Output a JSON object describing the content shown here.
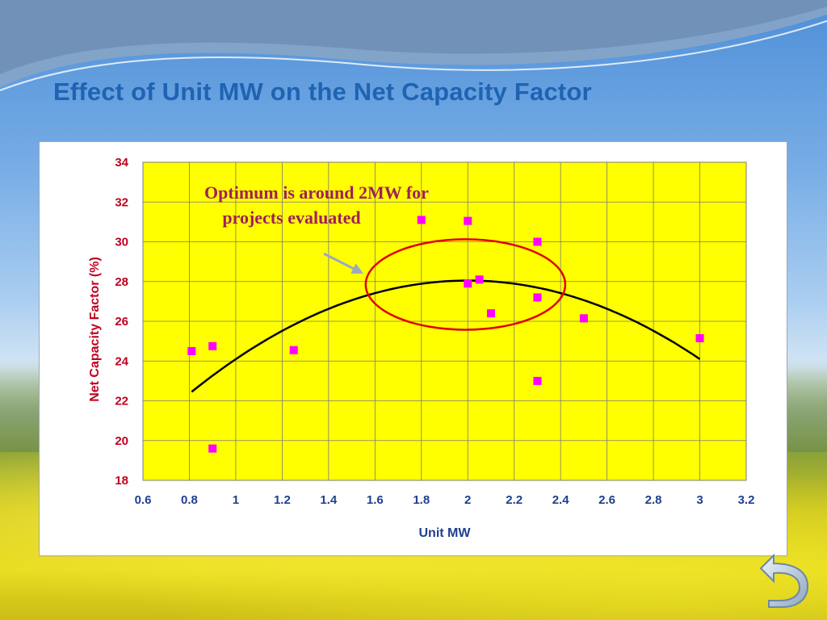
{
  "slide": {
    "title": "Effect of Unit MW on the Net Capacity Factor",
    "nav": {
      "back_icon": "return-arrow-icon"
    }
  },
  "colors": {
    "title": "#1f63b3",
    "plot_background": "#ffff00",
    "axis_label": "#c0001e",
    "x_axis_label": "#1f3f8f",
    "point": "#ff00ff",
    "trend": "#000000",
    "circle": "#e00000",
    "annotation_text": "#a0205a",
    "arrow": "#9aaabb"
  },
  "chart_data": {
    "type": "scatter",
    "title": "",
    "xlabel": "Unit MW",
    "ylabel": "Net Capacity Factor (%)",
    "xlim": [
      0.6,
      3.2
    ],
    "ylim": [
      18,
      34
    ],
    "x_ticks": [
      "0.6",
      "0.8",
      "1",
      "1.2",
      "1.4",
      "1.6",
      "1.8",
      "2",
      "2.2",
      "2.4",
      "2.6",
      "2.8",
      "3",
      "3.2"
    ],
    "y_ticks": [
      "18",
      "20",
      "22",
      "24",
      "26",
      "28",
      "30",
      "32",
      "34"
    ],
    "grid": true,
    "series": [
      {
        "points": [
          [
            0.81,
            24.5
          ],
          [
            0.9,
            24.75
          ],
          [
            0.9,
            19.6
          ],
          [
            1.25,
            24.55
          ],
          [
            1.8,
            31.1
          ],
          [
            2.0,
            31.05
          ],
          [
            2.0,
            27.9
          ],
          [
            2.05,
            28.1
          ],
          [
            2.1,
            26.4
          ],
          [
            2.3,
            30.0
          ],
          [
            2.3,
            27.2
          ],
          [
            2.3,
            23.0
          ],
          [
            2.5,
            26.15
          ],
          [
            3.0,
            25.15
          ]
        ]
      }
    ],
    "trendline": {
      "type": "polynomial-2",
      "from": 0.81,
      "to": 3.0,
      "points": [
        [
          0.81,
          22.45
        ],
        [
          2.0,
          28.05
        ],
        [
          3.0,
          24.1
        ]
      ]
    },
    "annotations": {
      "text_line1": "Optimum is around 2MW for",
      "text_line2": "projects evaluated",
      "circle": {
        "center": [
          1.99,
          27.85
        ],
        "rx": 0.43,
        "ry": 4.55
      },
      "arrow": {
        "from": [
          1.38,
          29.4
        ],
        "to": [
          1.55,
          28.4
        ]
      }
    }
  }
}
